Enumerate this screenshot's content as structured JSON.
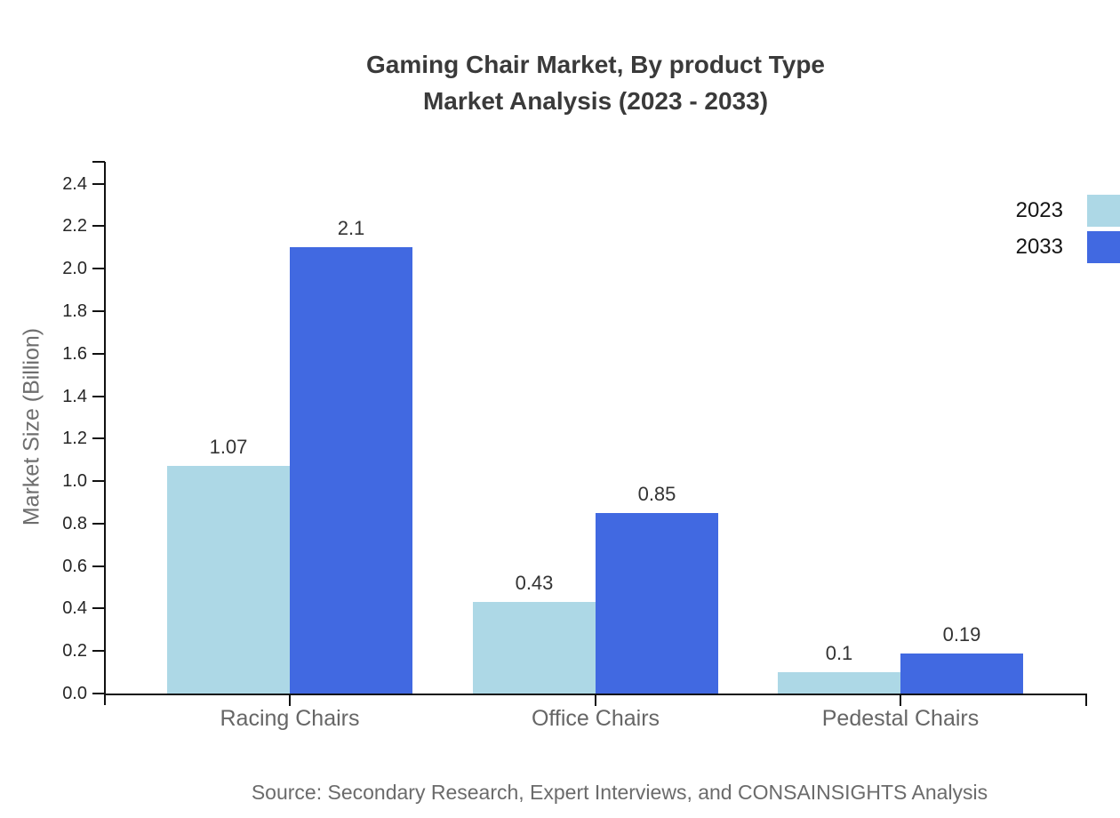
{
  "chart_data": {
    "type": "bar",
    "title_lines": [
      "Gaming Chair Market, By product Type",
      "Market Analysis (2023 - 2033)"
    ],
    "ylabel": "Market Size (Billion)",
    "xlabel": "",
    "categories": [
      "Racing Chairs",
      "Office Chairs",
      "Pedestal Chairs"
    ],
    "series": [
      {
        "name": "2023",
        "color": "#ADD8E6",
        "values": [
          1.07,
          0.43,
          0.1
        ],
        "value_labels": [
          "1.07",
          "0.43",
          "0.1"
        ]
      },
      {
        "name": "2033",
        "color": "#4169E1",
        "values": [
          2.1,
          0.85,
          0.19
        ],
        "value_labels": [
          "2.1",
          "0.85",
          "0.19"
        ]
      }
    ],
    "yticks": [
      "0.0",
      "0.2",
      "0.4",
      "0.6",
      "0.8",
      "1.0",
      "1.2",
      "1.4",
      "1.6",
      "1.8",
      "2.0",
      "2.2",
      "2.4"
    ],
    "ylim": [
      0,
      2.5
    ],
    "grid": false,
    "legend_position": "right-edge",
    "bar_value_labels": true,
    "source": "Source: Secondary Research, Expert Interviews, and CONSAINSIGHTS Analysis"
  },
  "colors": {
    "axis": "#111111",
    "title_text": "#3a3a3a",
    "tick_label_text": "#262626",
    "category_label_text": "#666666",
    "value_label_text": "#333333",
    "muted_text": "#6b6b6b",
    "background": "#ffffff"
  }
}
